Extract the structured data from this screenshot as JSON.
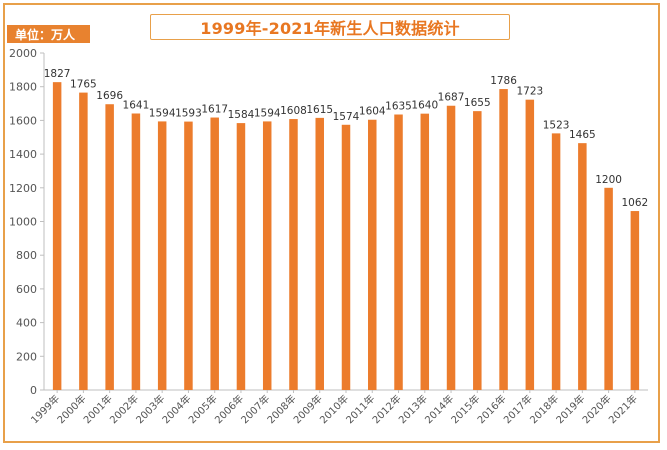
{
  "header": {
    "title": "1999年-2021年新生人口数据统计",
    "unit": "单位：万人"
  },
  "colors": {
    "bar": "#EC7C2C",
    "accent": "#E87722",
    "frame": "#E8A04A",
    "axis": "#BFBFBF"
  },
  "chart_data": {
    "type": "bar",
    "title": "1999年-2021年新生人口数据统计",
    "xlabel": "",
    "ylabel": "",
    "unit": "单位：万人",
    "ylim": [
      0,
      2000
    ],
    "yticks": [
      0,
      200,
      400,
      600,
      800,
      1000,
      1200,
      1400,
      1600,
      1800,
      2000
    ],
    "grid": false,
    "legend": "none",
    "categories": [
      "1999年",
      "2000年",
      "2001年",
      "2002年",
      "2003年",
      "2004年",
      "2005年",
      "2006年",
      "2007年",
      "2008年",
      "2009年",
      "2010年",
      "2011年",
      "2012年",
      "2013年",
      "2014年",
      "2015年",
      "2016年",
      "2017年",
      "2018年",
      "2019年",
      "2020年",
      "2021年"
    ],
    "values": [
      1827,
      1765,
      1696,
      1641,
      1594,
      1593,
      1617,
      1584,
      1594,
      1608,
      1615,
      1574,
      1604,
      1635,
      1640,
      1687,
      1655,
      1786,
      1723,
      1523,
      1465,
      1200,
      1062
    ]
  }
}
